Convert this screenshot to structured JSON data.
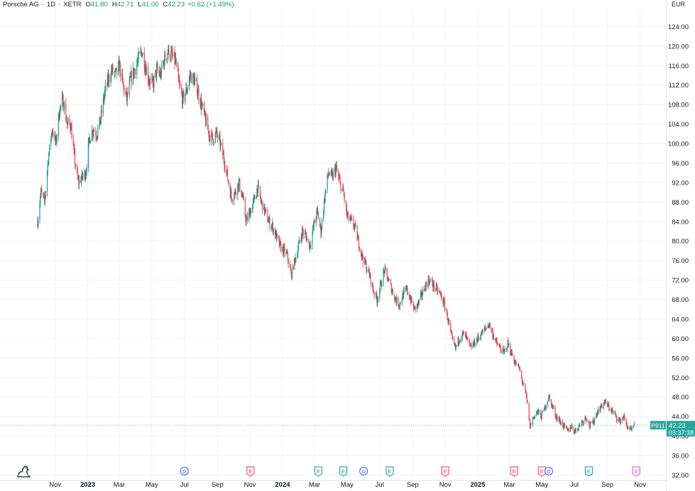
{
  "header": {
    "symbol_name": "Porsche AG",
    "interval": "1D",
    "exchange": "XETR",
    "open_label": "O",
    "open": "41.80",
    "high_label": "H",
    "high": "42.71",
    "low_label": "L",
    "low": "41.00",
    "close_label": "C",
    "close": "42.23",
    "change": "+0.62 (+1.49%)"
  },
  "currency": "EUR",
  "price_tag": {
    "ticker": "P911",
    "price": "42.23",
    "countdown": "03:37:38"
  },
  "colors": {
    "up": "#089981",
    "down": "#f23645",
    "grid": "#f0f3fa",
    "text": "#131722",
    "tag_bg": "#26a69a",
    "dividend": "#2962ff",
    "earnings_down": "#f23645",
    "earnings_up": "#089981",
    "earnings_future": "#e040fb"
  },
  "chart_data": {
    "type": "candlestick",
    "series_name": "Porsche AG · 1D · XETR",
    "y_unit": "EUR",
    "ylim": [
      32,
      126
    ],
    "y_ticks": [
      "124.00",
      "120.00",
      "116.00",
      "112.00",
      "108.00",
      "104.00",
      "100.00",
      "96.00",
      "92.00",
      "88.00",
      "84.00",
      "80.00",
      "76.00",
      "72.00",
      "68.00",
      "64.00",
      "60.00",
      "56.00",
      "52.00",
      "48.00",
      "44.00",
      "40.00",
      "36.00",
      "32.00"
    ],
    "x_range": [
      "2022-09-29",
      "2025-10-22"
    ],
    "x_ticks": [
      {
        "label": "Nov",
        "date": "2022-11-01",
        "bold": false
      },
      {
        "label": "2023",
        "date": "2023-01-01",
        "bold": true
      },
      {
        "label": "Mar",
        "date": "2023-03-01",
        "bold": false
      },
      {
        "label": "May",
        "date": "2023-05-01",
        "bold": false
      },
      {
        "label": "Jul",
        "date": "2023-07-01",
        "bold": false
      },
      {
        "label": "Sep",
        "date": "2023-09-01",
        "bold": false
      },
      {
        "label": "Nov",
        "date": "2023-11-01",
        "bold": false
      },
      {
        "label": "2024",
        "date": "2024-01-01",
        "bold": true
      },
      {
        "label": "Mar",
        "date": "2024-03-01",
        "bold": false
      },
      {
        "label": "May",
        "date": "2024-05-01",
        "bold": false
      },
      {
        "label": "Jul",
        "date": "2024-07-01",
        "bold": false
      },
      {
        "label": "Sep",
        "date": "2024-09-01",
        "bold": false
      },
      {
        "label": "Nov",
        "date": "2024-11-01",
        "bold": false
      },
      {
        "label": "2025",
        "date": "2025-01-01",
        "bold": true
      },
      {
        "label": "Mar",
        "date": "2025-03-01",
        "bold": false
      },
      {
        "label": "May",
        "date": "2025-05-01",
        "bold": false
      },
      {
        "label": "Jul",
        "date": "2025-07-01",
        "bold": false
      },
      {
        "label": "Sep",
        "date": "2025-09-01",
        "bold": false
      },
      {
        "label": "Nov",
        "date": "2025-11-01",
        "bold": false
      }
    ],
    "price_path": [
      [
        "2022-09-29",
        84
      ],
      [
        "2022-10-05",
        90
      ],
      [
        "2022-10-12",
        88
      ],
      [
        "2022-10-19",
        97
      ],
      [
        "2022-10-26",
        103
      ],
      [
        "2022-11-02",
        100
      ],
      [
        "2022-11-09",
        107
      ],
      [
        "2022-11-16",
        109
      ],
      [
        "2022-11-23",
        104
      ],
      [
        "2022-11-30",
        104
      ],
      [
        "2022-12-07",
        97
      ],
      [
        "2022-12-14",
        92
      ],
      [
        "2022-12-21",
        93
      ],
      [
        "2022-12-28",
        94
      ],
      [
        "2023-01-04",
        101
      ],
      [
        "2023-01-11",
        103
      ],
      [
        "2023-01-18",
        102
      ],
      [
        "2023-01-25",
        105
      ],
      [
        "2023-02-01",
        110
      ],
      [
        "2023-02-08",
        113
      ],
      [
        "2023-02-15",
        115
      ],
      [
        "2023-02-22",
        114
      ],
      [
        "2023-03-01",
        116
      ],
      [
        "2023-03-08",
        112
      ],
      [
        "2023-03-15",
        109
      ],
      [
        "2023-03-22",
        113
      ],
      [
        "2023-03-29",
        115
      ],
      [
        "2023-04-05",
        117
      ],
      [
        "2023-04-12",
        119
      ],
      [
        "2023-04-19",
        116
      ],
      [
        "2023-04-26",
        113
      ],
      [
        "2023-05-03",
        112
      ],
      [
        "2023-05-10",
        115
      ],
      [
        "2023-05-17",
        114
      ],
      [
        "2023-05-24",
        117
      ],
      [
        "2023-05-31",
        119
      ],
      [
        "2023-06-07",
        118
      ],
      [
        "2023-06-14",
        117
      ],
      [
        "2023-06-21",
        112
      ],
      [
        "2023-06-28",
        109
      ],
      [
        "2023-07-05",
        111
      ],
      [
        "2023-07-12",
        114
      ],
      [
        "2023-07-19",
        113
      ],
      [
        "2023-07-26",
        111
      ],
      [
        "2023-08-02",
        108
      ],
      [
        "2023-08-09",
        105
      ],
      [
        "2023-08-16",
        102
      ],
      [
        "2023-08-23",
        101
      ],
      [
        "2023-08-30",
        102
      ],
      [
        "2023-09-06",
        100
      ],
      [
        "2023-09-13",
        97
      ],
      [
        "2023-09-20",
        93
      ],
      [
        "2023-09-27",
        89
      ],
      [
        "2023-10-04",
        90
      ],
      [
        "2023-10-11",
        92
      ],
      [
        "2023-10-18",
        89
      ],
      [
        "2023-10-25",
        84
      ],
      [
        "2023-11-01",
        86
      ],
      [
        "2023-11-08",
        88
      ],
      [
        "2023-11-15",
        91
      ],
      [
        "2023-11-22",
        88
      ],
      [
        "2023-11-29",
        86
      ],
      [
        "2023-12-06",
        84
      ],
      [
        "2023-12-13",
        83
      ],
      [
        "2023-12-20",
        81
      ],
      [
        "2023-12-27",
        79
      ],
      [
        "2024-01-03",
        78
      ],
      [
        "2024-01-10",
        77
      ],
      [
        "2024-01-17",
        73
      ],
      [
        "2024-01-24",
        76
      ],
      [
        "2024-01-31",
        79
      ],
      [
        "2024-02-07",
        82
      ],
      [
        "2024-02-14",
        81
      ],
      [
        "2024-02-21",
        79
      ],
      [
        "2024-02-28",
        83
      ],
      [
        "2024-03-06",
        86
      ],
      [
        "2024-03-13",
        82
      ],
      [
        "2024-03-20",
        89
      ],
      [
        "2024-03-27",
        94
      ],
      [
        "2024-04-03",
        93
      ],
      [
        "2024-04-10",
        95
      ],
      [
        "2024-04-17",
        92
      ],
      [
        "2024-04-24",
        90
      ],
      [
        "2024-05-01",
        85
      ],
      [
        "2024-05-08",
        84
      ],
      [
        "2024-05-15",
        83
      ],
      [
        "2024-05-22",
        80
      ],
      [
        "2024-05-29",
        77
      ],
      [
        "2024-06-05",
        75
      ],
      [
        "2024-06-12",
        73
      ],
      [
        "2024-06-19",
        70
      ],
      [
        "2024-06-26",
        68
      ],
      [
        "2024-07-03",
        71
      ],
      [
        "2024-07-10",
        74
      ],
      [
        "2024-07-17",
        72
      ],
      [
        "2024-07-24",
        70
      ],
      [
        "2024-07-31",
        68
      ],
      [
        "2024-08-07",
        67
      ],
      [
        "2024-08-14",
        69
      ],
      [
        "2024-08-21",
        70
      ],
      [
        "2024-08-28",
        68
      ],
      [
        "2024-09-04",
        66
      ],
      [
        "2024-09-11",
        67
      ],
      [
        "2024-09-18",
        69
      ],
      [
        "2024-09-25",
        71
      ],
      [
        "2024-10-02",
        72
      ],
      [
        "2024-10-09",
        71
      ],
      [
        "2024-10-16",
        70
      ],
      [
        "2024-10-23",
        69
      ],
      [
        "2024-10-30",
        67
      ],
      [
        "2024-11-06",
        64
      ],
      [
        "2024-11-13",
        60
      ],
      [
        "2024-11-20",
        58
      ],
      [
        "2024-11-27",
        60
      ],
      [
        "2024-12-04",
        61
      ],
      [
        "2024-12-11",
        60
      ],
      [
        "2024-12-18",
        58
      ],
      [
        "2024-12-25",
        59
      ],
      [
        "2025-01-01",
        60
      ],
      [
        "2025-01-08",
        61
      ],
      [
        "2025-01-15",
        62
      ],
      [
        "2025-01-22",
        63
      ],
      [
        "2025-01-29",
        61
      ],
      [
        "2025-02-05",
        59
      ],
      [
        "2025-02-12",
        58
      ],
      [
        "2025-02-19",
        57
      ],
      [
        "2025-02-26",
        59
      ],
      [
        "2025-03-05",
        57
      ],
      [
        "2025-03-12",
        55
      ],
      [
        "2025-03-19",
        54
      ],
      [
        "2025-03-26",
        51
      ],
      [
        "2025-04-02",
        48
      ],
      [
        "2025-04-09",
        42
      ],
      [
        "2025-04-16",
        44
      ],
      [
        "2025-04-23",
        45
      ],
      [
        "2025-04-30",
        44
      ],
      [
        "2025-05-07",
        46
      ],
      [
        "2025-05-14",
        48
      ],
      [
        "2025-05-21",
        46
      ],
      [
        "2025-05-28",
        44
      ],
      [
        "2025-06-04",
        43
      ],
      [
        "2025-06-11",
        42
      ],
      [
        "2025-06-18",
        41
      ],
      [
        "2025-06-25",
        42
      ],
      [
        "2025-07-02",
        41
      ],
      [
        "2025-07-09",
        42
      ],
      [
        "2025-07-16",
        43
      ],
      [
        "2025-07-23",
        44
      ],
      [
        "2025-07-30",
        42
      ],
      [
        "2025-08-06",
        43
      ],
      [
        "2025-08-13",
        45
      ],
      [
        "2025-08-20",
        46
      ],
      [
        "2025-08-27",
        47
      ],
      [
        "2025-09-03",
        46
      ],
      [
        "2025-09-10",
        45
      ],
      [
        "2025-09-17",
        44
      ],
      [
        "2025-09-24",
        43
      ],
      [
        "2025-10-01",
        44
      ],
      [
        "2025-10-08",
        42
      ],
      [
        "2025-10-15",
        41
      ],
      [
        "2025-10-22",
        42.23
      ]
    ],
    "events": [
      {
        "date": "2023-07-01",
        "letter": "D",
        "kind": "dividend"
      },
      {
        "date": "2023-11-02",
        "letter": "E",
        "kind": "earnings_down"
      },
      {
        "date": "2024-03-08",
        "letter": "E",
        "kind": "earnings_up"
      },
      {
        "date": "2024-04-24",
        "letter": "E",
        "kind": "earnings_up"
      },
      {
        "date": "2024-06-01",
        "letter": "D",
        "kind": "dividend"
      },
      {
        "date": "2024-07-20",
        "letter": "E",
        "kind": "earnings_up"
      },
      {
        "date": "2024-11-01",
        "letter": "E",
        "kind": "earnings_down"
      },
      {
        "date": "2025-03-10",
        "letter": "E",
        "kind": "earnings_down"
      },
      {
        "date": "2025-05-01",
        "letter": "E",
        "kind": "earnings_down"
      },
      {
        "date": "2025-05-14",
        "letter": "D",
        "kind": "dividend"
      },
      {
        "date": "2025-07-28",
        "letter": "E",
        "kind": "earnings_up"
      },
      {
        "date": "2025-10-25",
        "letter": "E",
        "kind": "earnings_future"
      }
    ]
  }
}
